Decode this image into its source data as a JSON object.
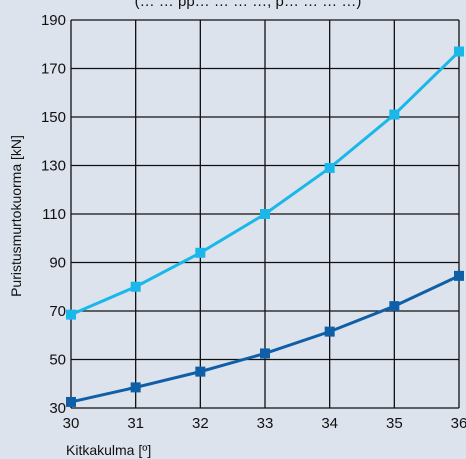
{
  "chart_data": {
    "type": "line",
    "title": "(… … pp… … … …, p… … … …)",
    "xlabel": "Kitkakulma [º]",
    "ylabel": "Puristusmurtokuorma [kN]",
    "x": [
      30,
      31,
      32,
      33,
      34,
      35,
      36
    ],
    "xlim": [
      30,
      36
    ],
    "ylim": [
      30,
      190
    ],
    "xticks": [
      "30",
      "31",
      "32",
      "33",
      "34",
      "35",
      "36"
    ],
    "yticks": [
      "30",
      "50",
      "70",
      "90",
      "110",
      "130",
      "150",
      "170",
      "190"
    ],
    "grid": true,
    "series": [
      {
        "color": "#1ab8ea",
        "marker": "square",
        "values": [
          68.5,
          80,
          94,
          110,
          129,
          151,
          177
        ]
      },
      {
        "color": "#0f5ea8",
        "marker": "square",
        "values": [
          32.5,
          38.5,
          45,
          52.5,
          61.5,
          72,
          84.5
        ]
      }
    ],
    "colors": {
      "background": "#dde3ec",
      "grid": "#111111",
      "text": "#111111"
    }
  }
}
